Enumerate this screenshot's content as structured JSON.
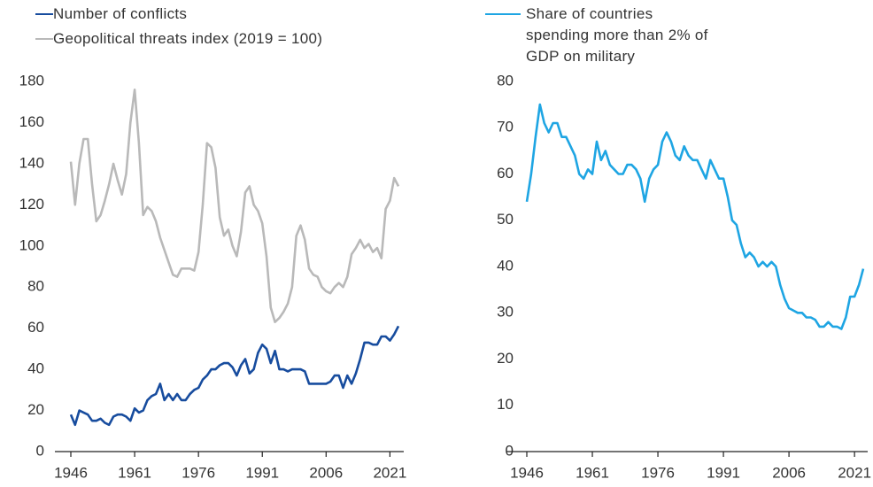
{
  "chart_data": [
    {
      "type": "line",
      "x": [
        1946,
        1947,
        1948,
        1949,
        1950,
        1951,
        1952,
        1953,
        1954,
        1955,
        1956,
        1957,
        1958,
        1959,
        1960,
        1961,
        1962,
        1963,
        1964,
        1965,
        1966,
        1967,
        1968,
        1969,
        1970,
        1971,
        1972,
        1973,
        1974,
        1975,
        1976,
        1977,
        1978,
        1979,
        1980,
        1981,
        1982,
        1983,
        1984,
        1985,
        1986,
        1987,
        1988,
        1989,
        1990,
        1991,
        1992,
        1993,
        1994,
        1995,
        1996,
        1997,
        1998,
        1999,
        2000,
        2001,
        2002,
        2003,
        2004,
        2005,
        2006,
        2007,
        2008,
        2009,
        2010,
        2011,
        2012,
        2013,
        2014,
        2015,
        2016,
        2017,
        2018,
        2019,
        2020,
        2021,
        2022,
        2023
      ],
      "series": [
        {
          "name": "Number of conflicts",
          "color": "#174c9e",
          "values": [
            18,
            13,
            20,
            19,
            18,
            15,
            15,
            16,
            14,
            13,
            17,
            18,
            18,
            17,
            15,
            21,
            19,
            20,
            25,
            27,
            28,
            33,
            25,
            28,
            25,
            28,
            25,
            25,
            28,
            30,
            31,
            35,
            37,
            40,
            40,
            42,
            43,
            43,
            41,
            37,
            42,
            45,
            38,
            40,
            48,
            52,
            50,
            43,
            49,
            40,
            40,
            39,
            40,
            40,
            40,
            39,
            33,
            33,
            33,
            33,
            33,
            34,
            37,
            37,
            31,
            37,
            33,
            38,
            45,
            53,
            53,
            52,
            52,
            56,
            56,
            54,
            57,
            61
          ]
        },
        {
          "name": "Geopolitical threats index (2019 = 100)",
          "color": "#b9b9b9",
          "values": [
            141,
            120,
            140,
            152,
            152,
            130,
            112,
            115,
            122,
            130,
            140,
            132,
            125,
            135,
            160,
            176,
            150,
            115,
            119,
            117,
            112,
            104,
            98,
            92,
            86,
            85,
            89,
            89,
            89,
            88,
            97,
            120,
            150,
            148,
            138,
            114,
            105,
            108,
            100,
            95,
            107,
            126,
            129,
            120,
            117,
            111,
            95,
            70,
            63,
            65,
            68,
            72,
            80,
            105,
            110,
            103,
            89,
            86,
            85,
            80,
            78,
            77,
            80,
            82,
            80,
            85,
            96,
            99,
            103,
            99,
            101,
            97,
            99,
            94,
            118,
            122,
            133,
            129
          ]
        }
      ],
      "xlim": [
        1946,
        2023
      ],
      "xticks": [
        1946,
        1961,
        1976,
        1991,
        2006,
        2021
      ],
      "ylim": [
        0,
        180
      ],
      "yticks": [
        0,
        20,
        40,
        60,
        80,
        100,
        120,
        140,
        160,
        180
      ]
    },
    {
      "type": "line",
      "x": [
        1946,
        1947,
        1948,
        1949,
        1950,
        1951,
        1952,
        1953,
        1954,
        1955,
        1956,
        1957,
        1958,
        1959,
        1960,
        1961,
        1962,
        1963,
        1964,
        1965,
        1966,
        1967,
        1968,
        1969,
        1970,
        1971,
        1972,
        1973,
        1974,
        1975,
        1976,
        1977,
        1978,
        1979,
        1980,
        1981,
        1982,
        1983,
        1984,
        1985,
        1986,
        1987,
        1988,
        1989,
        1990,
        1991,
        1992,
        1993,
        1994,
        1995,
        1996,
        1997,
        1998,
        1999,
        2000,
        2001,
        2002,
        2003,
        2004,
        2005,
        2006,
        2007,
        2008,
        2009,
        2010,
        2011,
        2012,
        2013,
        2014,
        2015,
        2016,
        2017,
        2018,
        2019,
        2020,
        2021,
        2022,
        2023
      ],
      "series": [
        {
          "name": "Share of countries spending more than 2% of GDP on military",
          "color": "#1ea5e3",
          "values": [
            54,
            60,
            68,
            75,
            71,
            69,
            71,
            71,
            68,
            68,
            66,
            64,
            60,
            59,
            61,
            60,
            67,
            63,
            65,
            62,
            61,
            60,
            60,
            62,
            62,
            61,
            59,
            54,
            59,
            61,
            62,
            67,
            69,
            67,
            64,
            63,
            66,
            64,
            63,
            63,
            61,
            59,
            63,
            61,
            59,
            59,
            55,
            50,
            49,
            45,
            42,
            43,
            42,
            40,
            41,
            40,
            41,
            40,
            36,
            33,
            31,
            30.5,
            30,
            30,
            29,
            29,
            28.5,
            27,
            27,
            28,
            27,
            27,
            26.5,
            29,
            33.5,
            33.5,
            36,
            39.5
          ]
        }
      ],
      "xlim": [
        1946,
        2023
      ],
      "xticks": [
        1946,
        1961,
        1976,
        1991,
        2006,
        2021
      ],
      "ylim": [
        0,
        80
      ],
      "yticks": [
        0,
        10,
        20,
        30,
        40,
        50,
        60,
        70,
        80
      ]
    }
  ]
}
